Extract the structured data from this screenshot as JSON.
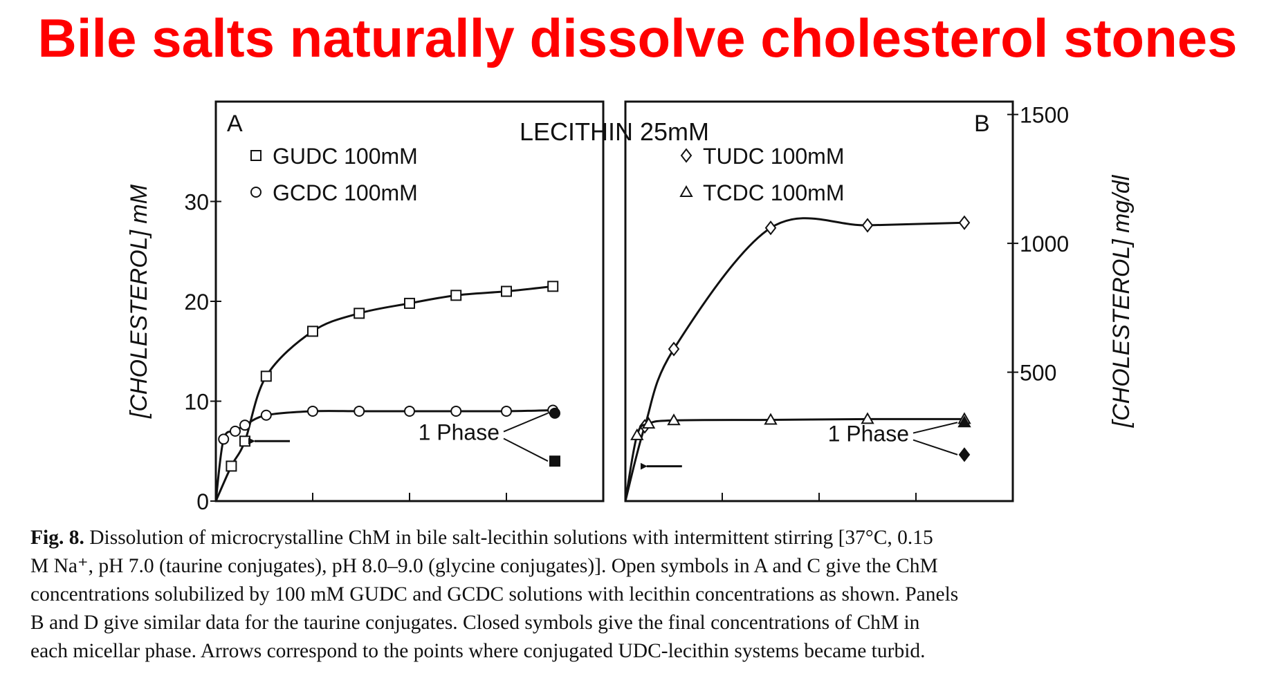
{
  "slide_title": "Bile salts naturally dissolve cholesterol stones",
  "chart_data": [
    {
      "type": "scatter",
      "panel_label": "A",
      "ylabel": "[CHOLESTEROL] mM",
      "yticks": [
        "0",
        "10",
        "20",
        "30"
      ],
      "ylim": [
        0,
        40
      ],
      "xlim": [
        0,
        1
      ],
      "series": [
        {
          "name": "GUDC 100mM",
          "marker": "square-open",
          "x": [
            0.04,
            0.075,
            0.13,
            0.25,
            0.37,
            0.5,
            0.62,
            0.75,
            0.87
          ],
          "y": [
            3.5,
            6,
            12.5,
            17,
            18.8,
            19.8,
            20.6,
            21,
            21.5
          ]
        },
        {
          "name": "GCDC 100mM",
          "marker": "circle-open",
          "x": [
            0.02,
            0.05,
            0.075,
            0.13,
            0.25,
            0.37,
            0.5,
            0.62,
            0.75,
            0.87
          ],
          "y": [
            6.2,
            7,
            7.6,
            8.6,
            9,
            9,
            9,
            9,
            9,
            9.1
          ]
        }
      ],
      "closed_points": [
        {
          "marker": "circle-filled",
          "x": 0.875,
          "y": 8.8
        },
        {
          "marker": "square-filled",
          "x": 0.875,
          "y": 4
        }
      ],
      "annotation": "1 Phase",
      "arrow_at": {
        "x": 0.075,
        "y": 6
      }
    },
    {
      "type": "scatter",
      "panel_label": "B",
      "ylabel": "[CHOLESTEROL] mg/dl",
      "yticks": [
        "500",
        "1000",
        "1500"
      ],
      "ylim": [
        0,
        1550
      ],
      "xlim": [
        0,
        1
      ],
      "series": [
        {
          "name": "TUDC 100mM",
          "marker": "diamond-open",
          "x": [
            0.05,
            0.125,
            0.375,
            0.625,
            0.875
          ],
          "y": [
            290,
            590,
            1060,
            1070,
            1080
          ]
        },
        {
          "name": "TCDC 100mM",
          "marker": "triangle-open",
          "x": [
            0.03,
            0.06,
            0.125,
            0.375,
            0.625,
            0.875
          ],
          "y": [
            255,
            300,
            313,
            315,
            318,
            318
          ]
        }
      ],
      "closed_points": [
        {
          "marker": "triangle-filled",
          "x": 0.875,
          "y": 305
        },
        {
          "marker": "diamond-filled",
          "x": 0.875,
          "y": 180
        }
      ],
      "annotation": "1 Phase",
      "arrow_at": {
        "x": 0.03,
        "y": 135
      }
    }
  ],
  "center_label": "LECITHIN 25mM",
  "caption": {
    "fig_label": "Fig. 8.",
    "lines": [
      " Dissolution of microcrystalline ChM in bile salt-lecithin solutions with intermittent stirring [37°C, 0.15",
      "M Na⁺, pH 7.0 (taurine conjugates), pH 8.0–9.0 (glycine conjugates)]. Open symbols in A and C give the ChM",
      "concentrations solubilized by 100 mM GUDC and GCDC solutions with lecithin concentrations as shown. Panels",
      "B and D give similar data for the taurine conjugates. Closed symbols give the final concentrations of ChM in",
      "each micellar phase. Arrows correspond to the points where conjugated UDC-lecithin systems became turbid."
    ]
  }
}
